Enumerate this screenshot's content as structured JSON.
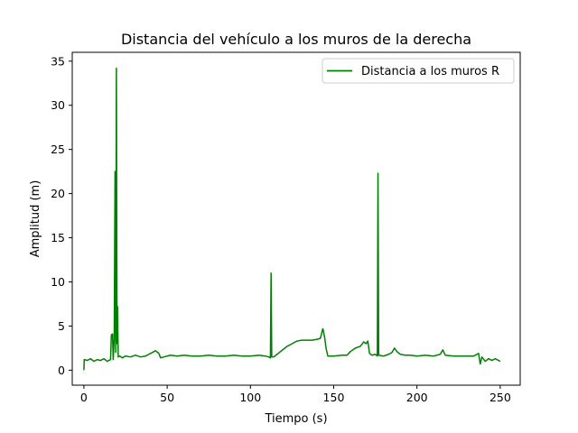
{
  "chart_data": {
    "type": "line",
    "title": "Distancia del vehículo a los muros de la derecha",
    "xlabel": "Tiempo (s)",
    "ylabel": "Amplitud (m)",
    "xlim": [
      -7,
      262
    ],
    "ylim": [
      -1.7,
      36.0
    ],
    "xticks": [
      0,
      50,
      100,
      150,
      200,
      250
    ],
    "yticks": [
      0,
      5,
      10,
      15,
      20,
      25,
      30,
      35
    ],
    "grid": false,
    "legend_position": "top-right",
    "series": [
      {
        "name": "Distancia a los muros R",
        "color": "#008000",
        "points": [
          [
            0,
            0.0
          ],
          [
            0.2,
            1.2
          ],
          [
            2,
            1.1
          ],
          [
            4,
            1.3
          ],
          [
            6,
            1.0
          ],
          [
            8,
            1.2
          ],
          [
            10,
            1.1
          ],
          [
            12,
            1.3
          ],
          [
            14,
            1.0
          ],
          [
            16,
            1.2
          ],
          [
            16.5,
            4.0
          ],
          [
            17.2,
            4.1
          ],
          [
            17.6,
            1.2
          ],
          [
            18.2,
            3.5
          ],
          [
            18.7,
            22.5
          ],
          [
            19.1,
            2.0
          ],
          [
            19.5,
            34.2
          ],
          [
            19.9,
            3.0
          ],
          [
            20.2,
            7.2
          ],
          [
            20.6,
            1.5
          ],
          [
            21.5,
            1.6
          ],
          [
            23,
            1.4
          ],
          [
            25,
            1.6
          ],
          [
            28,
            1.5
          ],
          [
            31,
            1.7
          ],
          [
            34,
            1.5
          ],
          [
            37,
            1.6
          ],
          [
            39,
            1.8
          ],
          [
            41,
            2.0
          ],
          [
            43,
            2.2
          ],
          [
            45,
            1.9
          ],
          [
            46,
            1.4
          ],
          [
            48,
            1.5
          ],
          [
            52,
            1.7
          ],
          [
            56,
            1.6
          ],
          [
            60,
            1.7
          ],
          [
            65,
            1.6
          ],
          [
            70,
            1.6
          ],
          [
            75,
            1.7
          ],
          [
            80,
            1.6
          ],
          [
            85,
            1.6
          ],
          [
            90,
            1.7
          ],
          [
            95,
            1.6
          ],
          [
            100,
            1.6
          ],
          [
            105,
            1.7
          ],
          [
            109,
            1.6
          ],
          [
            111,
            1.5
          ],
          [
            112,
            1.4
          ],
          [
            112.4,
            11.0
          ],
          [
            112.8,
            1.5
          ],
          [
            114,
            1.5
          ],
          [
            116,
            1.8
          ],
          [
            118,
            2.1
          ],
          [
            120,
            2.4
          ],
          [
            122,
            2.7
          ],
          [
            124,
            2.9
          ],
          [
            126,
            3.1
          ],
          [
            128,
            3.3
          ],
          [
            131,
            3.4
          ],
          [
            134,
            3.4
          ],
          [
            137,
            3.4
          ],
          [
            140,
            3.5
          ],
          [
            142,
            3.6
          ],
          [
            143.5,
            4.7
          ],
          [
            144.5,
            3.8
          ],
          [
            145.5,
            2.4
          ],
          [
            146.5,
            1.6
          ],
          [
            150,
            1.6
          ],
          [
            155,
            1.7
          ],
          [
            158,
            1.7
          ],
          [
            160,
            2.1
          ],
          [
            163,
            2.5
          ],
          [
            166,
            2.7
          ],
          [
            168,
            3.2
          ],
          [
            169.5,
            3.0
          ],
          [
            170.5,
            3.3
          ],
          [
            171.5,
            1.9
          ],
          [
            173,
            1.7
          ],
          [
            175,
            1.8
          ],
          [
            176.2,
            1.6
          ],
          [
            176.6,
            22.3
          ],
          [
            177,
            1.7
          ],
          [
            180,
            1.6
          ],
          [
            183,
            1.8
          ],
          [
            185,
            2.0
          ],
          [
            186.5,
            2.5
          ],
          [
            188,
            2.1
          ],
          [
            190,
            1.8
          ],
          [
            193,
            1.7
          ],
          [
            196,
            1.7
          ],
          [
            200,
            1.6
          ],
          [
            205,
            1.7
          ],
          [
            210,
            1.6
          ],
          [
            214,
            1.8
          ],
          [
            215.5,
            2.3
          ],
          [
            217,
            1.7
          ],
          [
            222,
            1.6
          ],
          [
            228,
            1.6
          ],
          [
            234,
            1.6
          ],
          [
            236,
            1.8
          ],
          [
            237,
            1.9
          ],
          [
            238,
            0.7
          ],
          [
            239,
            1.5
          ],
          [
            241,
            1.0
          ],
          [
            243,
            1.3
          ],
          [
            245,
            1.1
          ],
          [
            247,
            1.3
          ],
          [
            249,
            1.1
          ],
          [
            250,
            1.0
          ]
        ]
      }
    ]
  }
}
